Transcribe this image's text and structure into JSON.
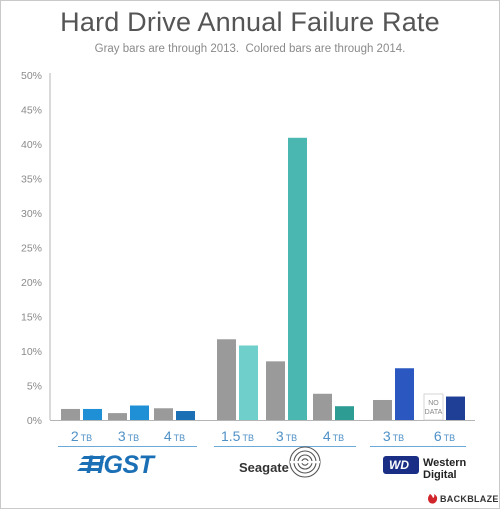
{
  "page": {
    "title": "Hard Drive Annual Failure Rate",
    "subtitle": "Gray bars are through 2013.  Colored bars are through 2014."
  },
  "chart_data": {
    "type": "bar",
    "title": "Hard Drive Annual Failure Rate",
    "subtitle": "Gray bars are through 2013.  Colored bars are through 2014.",
    "ylim": [
      0,
      50
    ],
    "yticks": [
      "0%",
      "5%",
      "10%",
      "15%",
      "20%",
      "25%",
      "30%",
      "35%",
      "40%",
      "45%",
      "50%"
    ],
    "grid": false,
    "series": [
      {
        "name": "through 2013",
        "color": "#9a9a9a"
      },
      {
        "name": "through 2014",
        "color": "colored"
      }
    ],
    "groups": [
      {
        "brand": "HGST",
        "size": "2",
        "unit": "TB",
        "gray": 1.6,
        "color": 1.6,
        "color_hex": "#1f8fd6"
      },
      {
        "brand": "HGST",
        "size": "3",
        "unit": "TB",
        "gray": 1.0,
        "color": 2.1,
        "color_hex": "#1f8fd6"
      },
      {
        "brand": "HGST",
        "size": "4",
        "unit": "TB",
        "gray": 1.7,
        "color": 1.3,
        "color_hex": "#1a6fb5"
      },
      {
        "brand": "Seagate",
        "size": "1.5",
        "unit": "TB",
        "gray": 11.7,
        "color": 10.8,
        "color_hex": "#6fd0cb"
      },
      {
        "brand": "Seagate",
        "size": "3",
        "unit": "TB",
        "gray": 8.5,
        "color": 40.9,
        "color_hex": "#4ab7b0"
      },
      {
        "brand": "Seagate",
        "size": "4",
        "unit": "TB",
        "gray": 3.8,
        "color": 2.0,
        "color_hex": "#2d9d94"
      },
      {
        "brand": "Western Digital",
        "size": "3",
        "unit": "TB",
        "gray": 2.9,
        "color": 7.5,
        "color_hex": "#2a58c0"
      },
      {
        "brand": "Western Digital",
        "size": "6",
        "unit": "TB",
        "gray": null,
        "color": 3.4,
        "color_hex": "#1e3f95",
        "gray_note": "NO DATA"
      }
    ]
  },
  "logos": {
    "hgst": "HGST",
    "seagate": "Seagate",
    "wd_mark": "WD",
    "wd_line1": "Western",
    "wd_line2": "Digital",
    "backblaze": "BACKBLAZE"
  },
  "colors": {
    "axis": "#b5b5b5",
    "tick_text": "#8a8a8a",
    "capacity_label": "#4f91c7",
    "brand_underline": "#6aa9d8"
  },
  "icons": {
    "seagate": "seagate-swirl-icon",
    "backblaze": "backblaze-flame-icon"
  }
}
